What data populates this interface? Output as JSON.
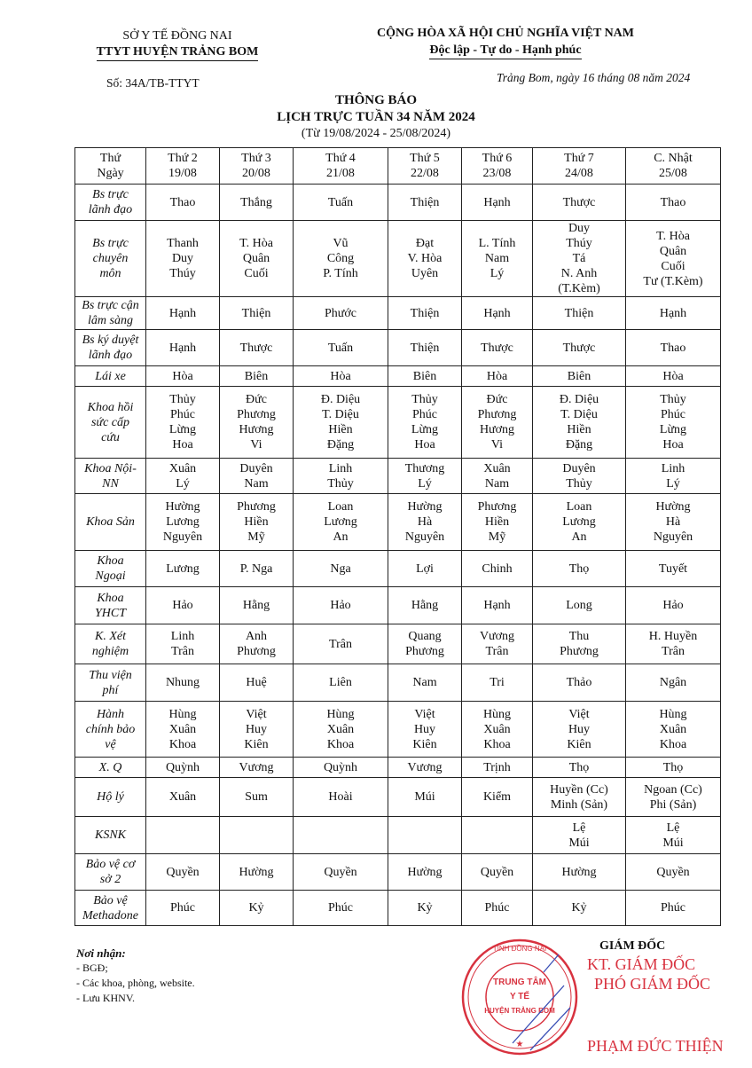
{
  "header": {
    "org_parent": "SỞ Y TẾ ĐỒNG NAI",
    "org": "TTYT HUYỆN TRẢNG BOM",
    "nation": "CỘNG HÒA XÃ HỘI CHỦ NGHĨA VIỆT NAM",
    "motto": "Độc lập - Tự do - Hạnh phúc",
    "doc_number": "Số:  34A/TB-TTYT",
    "place_date": "Trảng Bom, ngày 16 tháng 08 năm 2024"
  },
  "title": {
    "line1": "THÔNG BÁO",
    "line2": "LỊCH TRỰC TUẦN 34 NĂM 2024",
    "range": "(Từ 19/08/2024 - 25/08/2024)"
  },
  "table": {
    "header": [
      [
        "Thứ",
        "Ngày"
      ],
      [
        "Thứ 2",
        "19/08"
      ],
      [
        "Thứ 3",
        "20/08"
      ],
      [
        "Thứ 4",
        "21/08"
      ],
      [
        "Thứ 5",
        "22/08"
      ],
      [
        "Thứ 6",
        "23/08"
      ],
      [
        "Thứ 7",
        "24/08"
      ],
      [
        "C. Nhật",
        "25/08"
      ]
    ],
    "rows": [
      {
        "label": [
          "Bs trực",
          "lãnh đạo"
        ],
        "cells": [
          [
            "Thao"
          ],
          [
            "Thắng"
          ],
          [
            "Tuấn"
          ],
          [
            "Thiện"
          ],
          [
            "Hạnh"
          ],
          [
            "Thược"
          ],
          [
            "Thao"
          ]
        ]
      },
      {
        "label": [
          "Bs trực",
          "chuyên",
          "môn"
        ],
        "cells": [
          [
            "Thanh",
            "Duy",
            "Thúy"
          ],
          [
            "T. Hòa",
            "Quân",
            "Cuối"
          ],
          [
            "Vũ",
            "Công",
            "P. Tính"
          ],
          [
            "Đạt",
            "V. Hòa",
            "Uyên"
          ],
          [
            "L. Tính",
            "Nam",
            "Lý"
          ],
          [
            "Duy",
            "Thúy",
            "Tá",
            "N. Anh",
            "(T.Kèm)"
          ],
          [
            "T. Hòa",
            "Quân",
            "Cuối",
            "Tư (T.Kèm)"
          ]
        ]
      },
      {
        "label": [
          "Bs trực cận",
          "lâm sàng"
        ],
        "cells": [
          [
            "Hạnh"
          ],
          [
            "Thiện"
          ],
          [
            "Phước"
          ],
          [
            "Thiện"
          ],
          [
            "Hạnh"
          ],
          [
            "Thiện"
          ],
          [
            "Hạnh"
          ]
        ]
      },
      {
        "label": [
          "Bs ký duyệt",
          "lãnh đạo"
        ],
        "cells": [
          [
            "Hạnh"
          ],
          [
            "Thược"
          ],
          [
            "Tuấn"
          ],
          [
            "Thiện"
          ],
          [
            "Thược"
          ],
          [
            "Thược"
          ],
          [
            "Thao"
          ]
        ]
      },
      {
        "label": [
          "Lái xe"
        ],
        "cells": [
          [
            "Hòa"
          ],
          [
            "Biên"
          ],
          [
            "Hòa"
          ],
          [
            "Biên"
          ],
          [
            "Hòa"
          ],
          [
            "Biên"
          ],
          [
            "Hòa"
          ]
        ]
      },
      {
        "label": [
          "Khoa hồi",
          "sức cấp",
          "cứu"
        ],
        "cells": [
          [
            "Thủy",
            "Phúc",
            "Lừng",
            "Hoa"
          ],
          [
            "Đức",
            "Phương",
            "Hương",
            "Vi"
          ],
          [
            "Đ. Diệu",
            "T. Diệu",
            "Hiền",
            "Đặng"
          ],
          [
            "Thủy",
            "Phúc",
            "Lừng",
            "Hoa"
          ],
          [
            "Đức",
            "Phương",
            "Hương",
            "Vi"
          ],
          [
            "Đ. Diệu",
            "T. Diệu",
            "Hiền",
            "Đặng"
          ],
          [
            "Thủy",
            "Phúc",
            "Lừng",
            "Hoa"
          ]
        ]
      },
      {
        "label": [
          "Khoa Nội-",
          "NN"
        ],
        "cells": [
          [
            "Xuân",
            "Lý"
          ],
          [
            "Duyên",
            "Nam"
          ],
          [
            "Linh",
            "Thủy"
          ],
          [
            "Thương",
            "Lý"
          ],
          [
            "Xuân",
            "Nam"
          ],
          [
            "Duyên",
            "Thủy"
          ],
          [
            "Linh",
            "Lý"
          ]
        ]
      },
      {
        "label": [
          "Khoa Sản"
        ],
        "cells": [
          [
            "Hường",
            "Lương",
            "Nguyên"
          ],
          [
            "Phương",
            "Hiền",
            "Mỹ"
          ],
          [
            "Loan",
            "Lương",
            "An"
          ],
          [
            "Hường",
            "Hà",
            "Nguyên"
          ],
          [
            "Phương",
            "Hiền",
            "Mỹ"
          ],
          [
            "Loan",
            "Lương",
            "An"
          ],
          [
            "Hường",
            "Hà",
            "Nguyên"
          ]
        ]
      },
      {
        "label": [
          "Khoa",
          "Ngoại"
        ],
        "cells": [
          [
            "Lương"
          ],
          [
            "P. Nga"
          ],
          [
            "Nga"
          ],
          [
            "Lợi"
          ],
          [
            "Chinh"
          ],
          [
            "Thọ"
          ],
          [
            "Tuyết"
          ]
        ]
      },
      {
        "label": [
          "Khoa",
          "YHCT"
        ],
        "cells": [
          [
            "Hảo"
          ],
          [
            "Hằng"
          ],
          [
            "Hảo"
          ],
          [
            "Hằng"
          ],
          [
            "Hạnh"
          ],
          [
            "Long"
          ],
          [
            "Hảo"
          ]
        ]
      },
      {
        "label": [
          "K. Xét",
          "nghiệm"
        ],
        "cells": [
          [
            "Linh",
            "Trân"
          ],
          [
            "Anh",
            "Phương"
          ],
          [
            "Trân"
          ],
          [
            "Quang",
            "Phương"
          ],
          [
            "Vương",
            "Trân"
          ],
          [
            "Thu",
            "Phương"
          ],
          [
            "H. Huyền",
            "Trân"
          ]
        ]
      },
      {
        "label": [
          "Thu viện",
          "phí"
        ],
        "cells": [
          [
            "Nhung"
          ],
          [
            "Huệ"
          ],
          [
            "Liên"
          ],
          [
            "Nam"
          ],
          [
            "Tri"
          ],
          [
            "Thảo"
          ],
          [
            "Ngân"
          ]
        ]
      },
      {
        "label": [
          "Hành",
          "chính bảo",
          "vệ"
        ],
        "cells": [
          [
            "Hùng",
            "Xuân",
            "Khoa"
          ],
          [
            "Việt",
            "Huy",
            "Kiên"
          ],
          [
            "Hùng",
            "Xuân",
            "Khoa"
          ],
          [
            "Việt",
            "Huy",
            "Kiên"
          ],
          [
            "Hùng",
            "Xuân",
            "Khoa"
          ],
          [
            "Việt",
            "Huy",
            "Kiên"
          ],
          [
            "Hùng",
            "Xuân",
            "Khoa"
          ]
        ]
      },
      {
        "label": [
          "X. Q"
        ],
        "cells": [
          [
            "Quỳnh"
          ],
          [
            "Vương"
          ],
          [
            "Quỳnh"
          ],
          [
            "Vương"
          ],
          [
            "Trịnh"
          ],
          [
            "Thọ"
          ],
          [
            "Thọ"
          ]
        ]
      },
      {
        "label": [
          "Hộ lý"
        ],
        "cells": [
          [
            "Xuân"
          ],
          [
            "Sum"
          ],
          [
            "Hoài"
          ],
          [
            "Múi"
          ],
          [
            "Kiểm"
          ],
          [
            "Huyền (Cc)",
            "Minh (Sản)"
          ],
          [
            "Ngoan (Cc)",
            "Phi (Sản)"
          ]
        ]
      },
      {
        "label": [
          "KSNK"
        ],
        "cells": [
          [],
          [],
          [],
          [],
          [],
          [
            "Lệ",
            "Múi"
          ],
          [
            "Lệ",
            "Múi"
          ]
        ]
      },
      {
        "label": [
          "Bảo vệ cơ",
          "sở 2"
        ],
        "cells": [
          [
            "Quyền"
          ],
          [
            "Hường"
          ],
          [
            "Quyền"
          ],
          [
            "Hường"
          ],
          [
            "Quyền"
          ],
          [
            "Hường"
          ],
          [
            "Quyền"
          ]
        ]
      },
      {
        "label": [
          "Bảo vệ",
          "Methadone"
        ],
        "cells": [
          [
            "Phúc"
          ],
          [
            "Kỷ"
          ],
          [
            "Phúc"
          ],
          [
            "Kỷ"
          ],
          [
            "Phúc"
          ],
          [
            "Kỷ"
          ],
          [
            "Phúc"
          ]
        ]
      }
    ]
  },
  "recipients": {
    "heading": "Nơi nhận:",
    "items": [
      "- BGĐ;",
      "- Các khoa, phòng, website.",
      "- Lưu KHNV."
    ]
  },
  "signature": {
    "title": "GIÁM ĐỐC",
    "kt": "KT. GIÁM ĐỐC",
    "deputy": "PHÓ GIÁM ĐỐC",
    "name": "PHẠM ĐỨC THIỆN",
    "stamp_text": [
      "TRUNG TÂM",
      "Y TẾ",
      "HUYỆN TRẢNG BOM",
      "TỈNH ĐỒNG NAI"
    ],
    "stamp_color": "#d8323f"
  }
}
